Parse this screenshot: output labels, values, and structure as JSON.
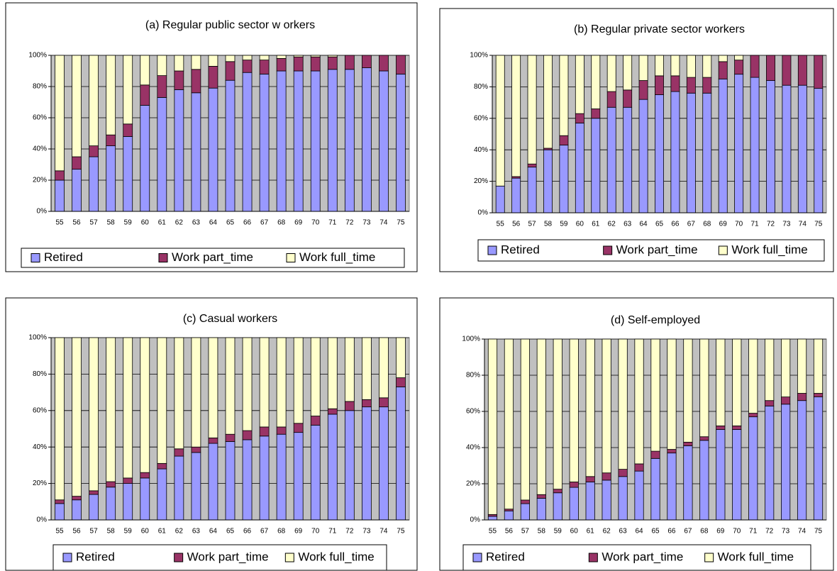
{
  "chart_data": [
    {
      "type": "bar",
      "stacked": true,
      "title": "(a) Regular public sector w orkers",
      "categories": [
        "55",
        "56",
        "57",
        "58",
        "59",
        "60",
        "61",
        "62",
        "63",
        "64",
        "65",
        "66",
        "67",
        "68",
        "69",
        "70",
        "71",
        "72",
        "73",
        "74",
        "75"
      ],
      "series": [
        {
          "name": "Retired",
          "color": "#9999ff",
          "values": [
            20,
            27,
            35,
            42,
            48,
            68,
            73,
            78,
            76,
            79,
            84,
            89,
            88,
            90,
            90,
            90,
            91,
            91,
            92,
            90,
            88
          ]
        },
        {
          "name": "Work part_time",
          "color": "#993366",
          "values": [
            6,
            8,
            7,
            7,
            8,
            13,
            14,
            12,
            15,
            14,
            12,
            8,
            9,
            8,
            9,
            9,
            8,
            9,
            8,
            10,
            12
          ]
        },
        {
          "name": "Work full_time",
          "color": "#ffffcc",
          "values": [
            74,
            65,
            58,
            51,
            44,
            19,
            13,
            10,
            9,
            7,
            4,
            3,
            3,
            2,
            1,
            1,
            1,
            0,
            0,
            0,
            0
          ]
        }
      ],
      "ylim": [
        0,
        100
      ],
      "yticks": [
        {
          "value": 0,
          "label": "0%"
        },
        {
          "value": 20,
          "label": "20%"
        },
        {
          "value": 40,
          "label": "40%"
        },
        {
          "value": 60,
          "label": "60%"
        },
        {
          "value": 80,
          "label": "80%"
        },
        {
          "value": 100,
          "label": "100%"
        }
      ],
      "grid": true,
      "legend": "bottom"
    },
    {
      "type": "bar",
      "stacked": true,
      "title": "(b) Regular private sector workers",
      "categories": [
        "55",
        "56",
        "57",
        "58",
        "59",
        "60",
        "61",
        "62",
        "63",
        "64",
        "65",
        "66",
        "67",
        "68",
        "69",
        "70",
        "71",
        "72",
        "73",
        "74",
        "75"
      ],
      "series": [
        {
          "name": "Retired",
          "color": "#9999ff",
          "values": [
            17,
            22,
            29,
            40,
            43,
            57,
            60,
            67,
            67,
            72,
            75,
            77,
            76,
            76,
            85,
            88,
            86,
            84,
            81,
            81,
            79
          ]
        },
        {
          "name": "Work part_time",
          "color": "#993366",
          "values": [
            0,
            1,
            2,
            1,
            6,
            6,
            6,
            10,
            11,
            12,
            12,
            10,
            10,
            10,
            11,
            9,
            14,
            16,
            19,
            19,
            21
          ]
        },
        {
          "name": "Work full_time",
          "color": "#ffffcc",
          "values": [
            83,
            77,
            69,
            59,
            51,
            37,
            34,
            23,
            22,
            16,
            13,
            13,
            14,
            14,
            4,
            3,
            0,
            0,
            0,
            0,
            0
          ]
        }
      ],
      "ylim": [
        0,
        100
      ],
      "yticks": [
        {
          "value": 0,
          "label": "0%"
        },
        {
          "value": 20,
          "label": "20%"
        },
        {
          "value": 40,
          "label": "40%"
        },
        {
          "value": 60,
          "label": "60%"
        },
        {
          "value": 80,
          "label": "80%"
        },
        {
          "value": 100,
          "label": "100%"
        }
      ],
      "grid": true,
      "legend": "bottom"
    },
    {
      "type": "bar",
      "stacked": true,
      "title": "(c) Casual workers",
      "categories": [
        "55",
        "56",
        "57",
        "58",
        "59",
        "60",
        "61",
        "62",
        "63",
        "64",
        "65",
        "66",
        "67",
        "68",
        "69",
        "70",
        "71",
        "72",
        "73",
        "74",
        "75"
      ],
      "series": [
        {
          "name": "Retired",
          "color": "#9999ff",
          "values": [
            9,
            11,
            14,
            18,
            20,
            23,
            28,
            35,
            37,
            42,
            43,
            44,
            46,
            47,
            48,
            52,
            58,
            60,
            62,
            62,
            73
          ]
        },
        {
          "name": "Work part_time",
          "color": "#993366",
          "values": [
            2,
            2,
            2,
            3,
            3,
            3,
            3,
            4,
            3,
            3,
            4,
            5,
            5,
            4,
            5,
            5,
            3,
            5,
            4,
            5,
            5
          ]
        },
        {
          "name": "Work full_time",
          "color": "#ffffcc",
          "values": [
            89,
            87,
            84,
            79,
            77,
            74,
            69,
            61,
            60,
            55,
            53,
            51,
            49,
            49,
            47,
            43,
            39,
            35,
            34,
            33,
            22
          ]
        }
      ],
      "ylim": [
        0,
        100
      ],
      "yticks": [
        {
          "value": 0,
          "label": "0%"
        },
        {
          "value": 20,
          "label": "20%"
        },
        {
          "value": 40,
          "label": "40%"
        },
        {
          "value": 60,
          "label": "60%"
        },
        {
          "value": 80,
          "label": "80%"
        },
        {
          "value": 100,
          "label": "100%"
        }
      ],
      "grid": true,
      "legend": "bottom"
    },
    {
      "type": "bar",
      "stacked": true,
      "title": "(d) Self-employed",
      "categories": [
        "55",
        "56",
        "57",
        "58",
        "59",
        "60",
        "61",
        "62",
        "63",
        "64",
        "65",
        "66",
        "67",
        "68",
        "69",
        "70",
        "71",
        "72",
        "73",
        "74",
        "75"
      ],
      "series": [
        {
          "name": "Retired",
          "color": "#9999ff",
          "values": [
            2,
            5,
            9,
            12,
            15,
            18,
            21,
            22,
            24,
            27,
            34,
            37,
            41,
            44,
            50,
            50,
            57,
            63,
            64,
            66,
            68
          ]
        },
        {
          "name": "Work part_time",
          "color": "#993366",
          "values": [
            1,
            1,
            2,
            2,
            2,
            3,
            3,
            4,
            4,
            4,
            4,
            2,
            2,
            2,
            2,
            2,
            2,
            3,
            4,
            4,
            2
          ]
        },
        {
          "name": "Work full_time",
          "color": "#ffffcc",
          "values": [
            97,
            94,
            89,
            86,
            83,
            79,
            76,
            74,
            72,
            69,
            62,
            61,
            57,
            54,
            48,
            48,
            41,
            34,
            32,
            30,
            30
          ]
        }
      ],
      "ylim": [
        0,
        100
      ],
      "yticks": [
        {
          "value": 0,
          "label": "0%"
        },
        {
          "value": 20,
          "label": "20%"
        },
        {
          "value": 40,
          "label": "40%"
        },
        {
          "value": 60,
          "label": "60%"
        },
        {
          "value": 80,
          "label": "80%"
        },
        {
          "value": 100,
          "label": "100%"
        }
      ],
      "grid": true,
      "legend": "bottom"
    }
  ]
}
